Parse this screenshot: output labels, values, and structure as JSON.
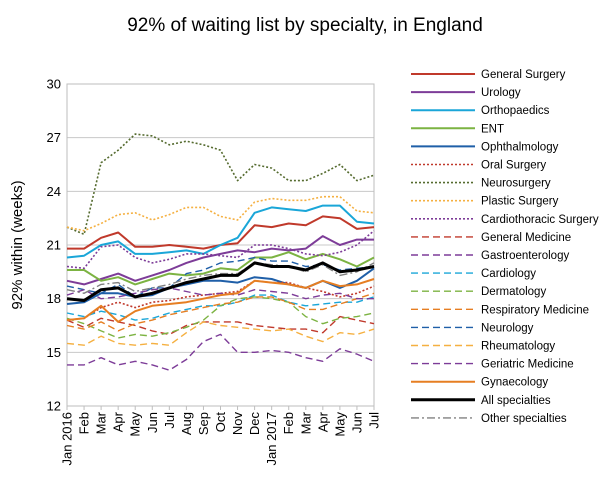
{
  "chart_data": {
    "type": "line",
    "title": "92% of waiting list by specialty, in England",
    "xlabel": "",
    "ylabel": "92% within (weeks)",
    "ylim": [
      12,
      30
    ],
    "yticks": [
      12,
      15,
      18,
      21,
      24,
      27,
      30
    ],
    "grid": "horizontal",
    "legend_position": "right",
    "x": [
      "Jan 2016",
      "Feb",
      "Mar",
      "Apr",
      "May",
      "Jun",
      "Jul",
      "Aug",
      "Sep",
      "Oct",
      "Nov",
      "Dec",
      "Jan 2017",
      "Feb",
      "Mar",
      "Apr",
      "May",
      "Jun",
      "Jul"
    ],
    "series": [
      {
        "name": "General Surgery",
        "color": "#c0392b",
        "width": 2,
        "dash": "",
        "values": [
          20.8,
          20.8,
          21.4,
          21.7,
          20.9,
          20.9,
          21.0,
          20.9,
          20.8,
          21.0,
          21.1,
          22.1,
          22.0,
          22.2,
          22.1,
          22.6,
          22.5,
          21.9,
          22.0
        ]
      },
      {
        "name": "Urology",
        "color": "#7d3c98",
        "width": 2,
        "dash": "",
        "values": [
          19.0,
          18.8,
          19.1,
          19.4,
          19.0,
          19.3,
          19.6,
          20.0,
          20.3,
          20.5,
          20.7,
          20.6,
          20.8,
          20.7,
          20.8,
          21.5,
          21.0,
          21.3,
          21.3
        ]
      },
      {
        "name": "Orthopaedics",
        "color": "#1aa6d8",
        "width": 2,
        "dash": "",
        "values": [
          20.3,
          20.4,
          21.0,
          21.2,
          20.5,
          20.5,
          20.6,
          20.7,
          20.5,
          21.0,
          21.4,
          22.8,
          23.1,
          23.0,
          22.9,
          23.2,
          23.2,
          22.3,
          22.2
        ]
      },
      {
        "name": "ENT",
        "color": "#7cb342",
        "width": 2,
        "dash": "",
        "values": [
          19.6,
          19.6,
          19.0,
          19.2,
          18.8,
          19.1,
          19.4,
          19.3,
          19.4,
          19.7,
          19.6,
          20.3,
          20.3,
          20.6,
          20.2,
          20.5,
          20.2,
          19.8,
          20.3
        ]
      },
      {
        "name": "Ophthalmology",
        "color": "#1f5fa8",
        "width": 2,
        "dash": "",
        "values": [
          17.7,
          17.8,
          18.3,
          18.3,
          18.1,
          18.2,
          18.6,
          18.8,
          19.0,
          19.0,
          18.9,
          19.2,
          19.1,
          18.8,
          18.6,
          19.0,
          18.6,
          19.0,
          19.7
        ]
      },
      {
        "name": "Oral Surgery",
        "color": "#c0392b",
        "width": 1.6,
        "dash": "2,2",
        "values": [
          16.8,
          16.9,
          17.5,
          17.8,
          17.5,
          17.8,
          17.9,
          18.1,
          18.2,
          18.3,
          18.4,
          19.0,
          18.9,
          18.9,
          18.6,
          18.4,
          18.1,
          18.3,
          18.7
        ]
      },
      {
        "name": "Neurosurgery",
        "color": "#556b2f",
        "width": 1.6,
        "dash": "2,2",
        "values": [
          22.0,
          21.6,
          25.6,
          26.3,
          27.2,
          27.1,
          26.6,
          26.8,
          26.6,
          26.3,
          24.6,
          25.5,
          25.3,
          24.6,
          24.6,
          25.0,
          25.5,
          24.6,
          24.9
        ]
      },
      {
        "name": "Plastic Surgery",
        "color": "#f5b041",
        "width": 1.6,
        "dash": "2,2",
        "values": [
          22.0,
          21.8,
          22.2,
          22.7,
          22.8,
          22.4,
          22.7,
          23.1,
          23.1,
          22.6,
          22.4,
          23.4,
          23.6,
          23.5,
          23.5,
          23.7,
          23.7,
          22.9,
          22.8
        ]
      },
      {
        "name": "Cardiothoracic Surgery",
        "color": "#7d3c98",
        "width": 1.6,
        "dash": "2,2",
        "values": [
          19.8,
          19.7,
          20.9,
          21.0,
          20.3,
          20.0,
          20.2,
          20.5,
          20.5,
          20.4,
          20.3,
          21.0,
          21.0,
          20.8,
          20.5,
          20.4,
          20.6,
          21.0,
          21.8
        ]
      },
      {
        "name": "General Medicine",
        "color": "#c0392b",
        "width": 1.4,
        "dash": "7,4",
        "values": [
          16.8,
          16.4,
          16.9,
          16.7,
          16.5,
          16.2,
          16.0,
          16.5,
          16.7,
          16.7,
          16.7,
          16.5,
          16.4,
          16.3,
          16.3,
          16.1,
          17.0,
          16.8,
          16.6
        ]
      },
      {
        "name": "Gastroenterology",
        "color": "#7d3c98",
        "width": 1.4,
        "dash": "7,4",
        "values": [
          14.3,
          14.3,
          14.7,
          14.3,
          14.5,
          14.3,
          14.0,
          14.6,
          15.6,
          16.0,
          15.0,
          15.0,
          15.1,
          15.0,
          14.7,
          14.5,
          15.2,
          14.9,
          14.5
        ]
      },
      {
        "name": "Cardiology",
        "color": "#1aa6d8",
        "width": 1.4,
        "dash": "7,4",
        "values": [
          17.2,
          17.0,
          17.3,
          17.1,
          16.8,
          16.9,
          17.2,
          17.4,
          17.6,
          17.6,
          17.8,
          18.2,
          18.2,
          17.8,
          17.6,
          17.7,
          17.8,
          17.8,
          18.1
        ]
      },
      {
        "name": "Dermatology",
        "color": "#7cb342",
        "width": 1.4,
        "dash": "7,4",
        "values": [
          16.9,
          16.6,
          16.2,
          15.8,
          16.0,
          15.9,
          16.1,
          16.4,
          16.8,
          17.6,
          18.0,
          18.1,
          18.0,
          17.8,
          17.0,
          16.6,
          16.9,
          17.0,
          17.2
        ]
      },
      {
        "name": "Respiratory Medicine",
        "color": "#e67e22",
        "width": 1.4,
        "dash": "7,4",
        "values": [
          16.5,
          16.3,
          16.7,
          16.2,
          16.6,
          16.8,
          17.1,
          17.3,
          17.5,
          17.7,
          17.8,
          18.1,
          18.1,
          17.8,
          17.4,
          17.4,
          17.7,
          18.0,
          18.3
        ]
      },
      {
        "name": "Neurology",
        "color": "#1f5fa8",
        "width": 1.4,
        "dash": "7,4",
        "values": [
          18.7,
          18.5,
          18.3,
          18.8,
          18.1,
          18.6,
          18.6,
          19.4,
          19.6,
          20.0,
          20.1,
          20.3,
          20.1,
          20.1,
          19.8,
          19.9,
          19.6,
          19.7,
          19.8
        ]
      },
      {
        "name": "Rheumatology",
        "color": "#f5b041",
        "width": 1.4,
        "dash": "7,4",
        "values": [
          15.5,
          15.4,
          15.9,
          15.5,
          15.4,
          15.5,
          15.4,
          16.1,
          16.7,
          16.5,
          16.4,
          16.3,
          16.2,
          16.3,
          15.9,
          15.6,
          16.1,
          16.0,
          16.3
        ]
      },
      {
        "name": "Geriatric Medicine",
        "color": "#7d3c98",
        "width": 1.4,
        "dash": "7,4",
        "values": [
          18.2,
          18.5,
          18.0,
          18.1,
          18.3,
          18.5,
          18.6,
          18.4,
          18.2,
          18.3,
          18.2,
          18.5,
          18.4,
          18.3,
          18.0,
          18.2,
          18.3,
          18.0,
          18.0
        ]
      },
      {
        "name": "Gynaecology",
        "color": "#e67e22",
        "width": 2,
        "dash": "",
        "values": [
          16.8,
          16.9,
          17.6,
          16.7,
          17.3,
          17.6,
          17.7,
          17.8,
          18.0,
          18.2,
          18.3,
          19.0,
          18.9,
          18.8,
          18.6,
          19.0,
          18.7,
          18.8,
          19.1
        ]
      },
      {
        "name": "All specialties",
        "color": "#000000",
        "width": 3,
        "dash": "",
        "values": [
          18.0,
          17.9,
          18.5,
          18.6,
          18.1,
          18.3,
          18.6,
          18.9,
          19.1,
          19.3,
          19.3,
          20.0,
          19.8,
          19.8,
          19.6,
          20.0,
          19.5,
          19.6,
          19.8
        ]
      },
      {
        "name": "Other specialties",
        "color": "#808080",
        "width": 1.4,
        "dash": "8,3,2,3",
        "values": [
          18.5,
          18.3,
          18.8,
          18.9,
          18.4,
          18.6,
          18.8,
          19.1,
          19.3,
          19.4,
          19.4,
          20.0,
          19.9,
          19.8,
          19.5,
          19.9,
          19.3,
          19.5,
          20.0
        ]
      }
    ]
  }
}
